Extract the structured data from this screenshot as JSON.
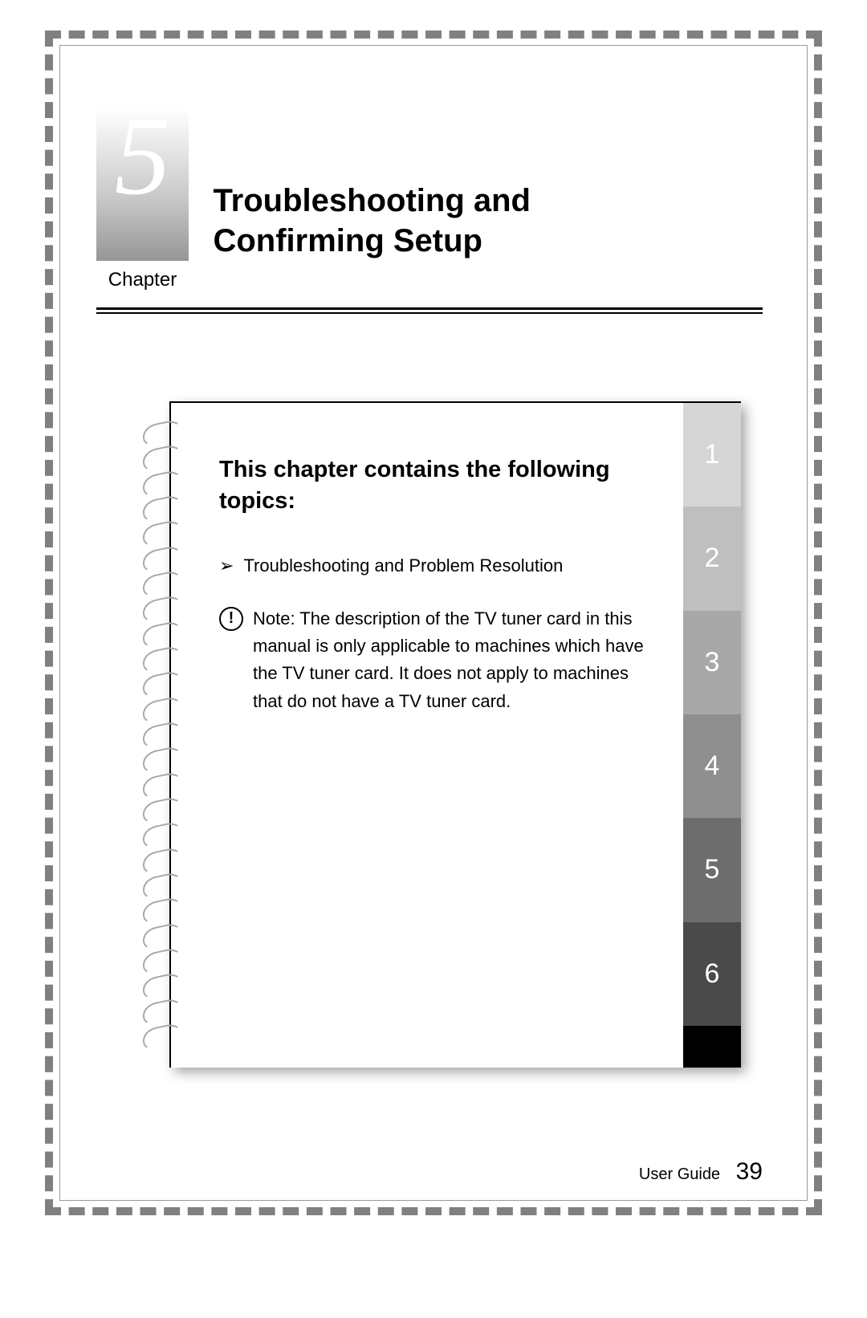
{
  "header": {
    "chapter_number": "5",
    "chapter_label": "Chapter",
    "chapter_title_line1": "Troubleshooting and",
    "chapter_title_line2": "Confirming Setup"
  },
  "notebook": {
    "topics_heading": "This chapter contains the following topics:",
    "topic_items": [
      "Troubleshooting and Problem Resolution"
    ],
    "note_text": "Note: The description of the TV tuner card in this manual is only applicable to machines which have the TV tuner card. It does not apply to machines that do not have a TV tuner card."
  },
  "tabs": [
    {
      "label": "1",
      "bg": "#d6d6d6"
    },
    {
      "label": "2",
      "bg": "#bfbfbf"
    },
    {
      "label": "3",
      "bg": "#a8a8a8"
    },
    {
      "label": "4",
      "bg": "#8f8f8f"
    },
    {
      "label": "5",
      "bg": "#6d6d6d"
    },
    {
      "label": "6",
      "bg": "#4a4a4a"
    }
  ],
  "spiral_ring_count": 25,
  "footer": {
    "label": "User Guide",
    "page_number": "39"
  }
}
